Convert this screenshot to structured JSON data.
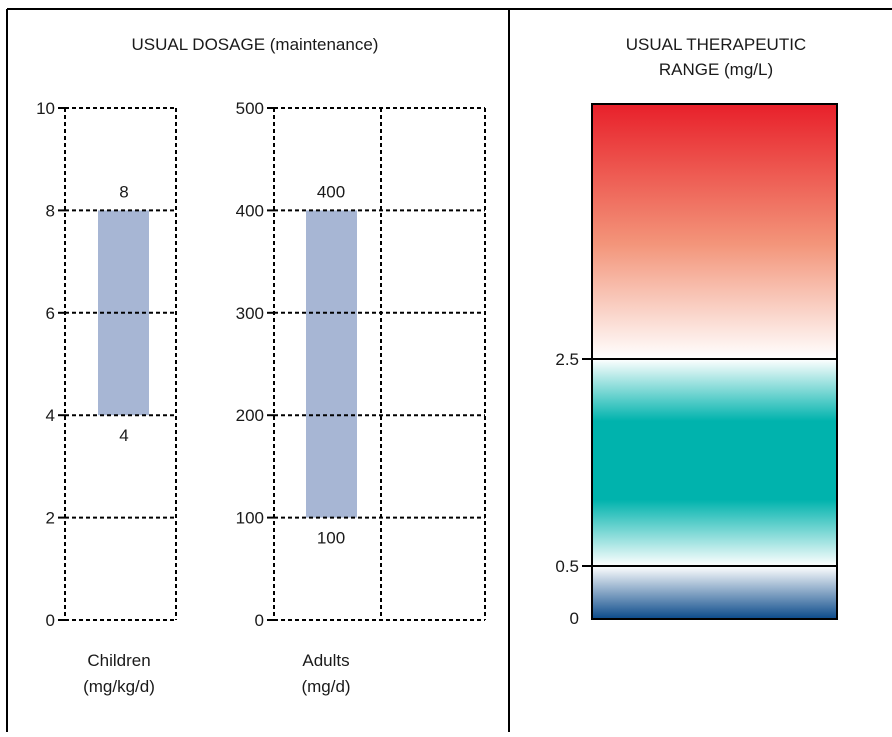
{
  "chart_data": [
    {
      "type": "bar",
      "title": "USUAL DOSAGE (maintenance)",
      "xlabel": "Children (mg/kg/d)",
      "xlabel_lines": [
        "Children",
        "(mg/kg/d)"
      ],
      "ylim": [
        0,
        10
      ],
      "yticks": [
        "0",
        "2",
        "4",
        "6",
        "8",
        "10"
      ],
      "grid": true,
      "ranges": [
        {
          "name": "Children",
          "low": 4,
          "high": 8,
          "low_label": "4",
          "high_label": "8"
        }
      ]
    },
    {
      "type": "bar",
      "xlabel": "Adults (mg/d)",
      "xlabel_lines": [
        "Adults",
        "(mg/d)"
      ],
      "ylim": [
        0,
        500
      ],
      "yticks": [
        "0",
        "100",
        "200",
        "300",
        "400",
        "500"
      ],
      "grid": true,
      "ranges": [
        {
          "name": "Adults",
          "low": 100,
          "high": 400,
          "low_label": "100",
          "high_label": "400"
        }
      ]
    },
    {
      "type": "area",
      "title": "USUAL THERAPEUTIC RANGE (mg/L)",
      "title_lines": [
        "USUAL THERAPEUTIC",
        "RANGE (mg/L)"
      ],
      "yticks": [
        "0",
        "0.5",
        "2.5"
      ],
      "bands": [
        {
          "from": "0",
          "to": "0.5",
          "zone": "low",
          "color": "#0b4a8a"
        },
        {
          "from": "0.5",
          "to": "2.5",
          "zone": "therapeutic",
          "color": "#00b3ad"
        },
        {
          "from": "2.5",
          "to": "",
          "zone": "high",
          "color": "#e8202a"
        }
      ]
    }
  ],
  "colors": {
    "range_bar": "#a7b6d4",
    "grid_line": "#000000",
    "frame": "#000000"
  }
}
